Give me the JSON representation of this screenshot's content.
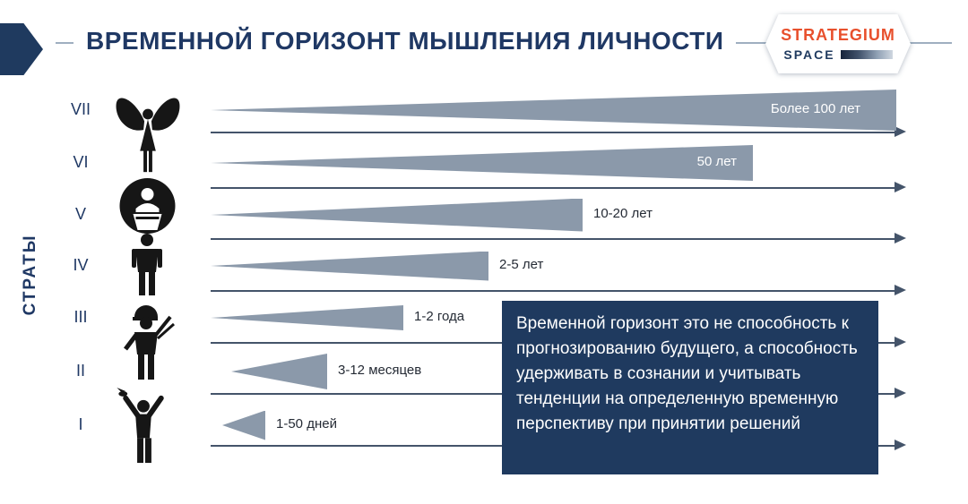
{
  "header": {
    "title": "ВРЕМЕННОЙ ГОРИЗОНТ МЫШЛЕНИЯ ЛИЧНОСТИ",
    "logo": {
      "name": "STRATEGIUM",
      "sub": "SPACE"
    }
  },
  "y_axis_label": "СТРАТЫ",
  "rows": [
    {
      "stratum": "VII",
      "label": "Более 100 лет"
    },
    {
      "stratum": "VI",
      "label": "50 лет"
    },
    {
      "stratum": "V",
      "label": "10-20 лет"
    },
    {
      "stratum": "IV",
      "label": "2-5 лет"
    },
    {
      "stratum": "III",
      "label": "1-2 года"
    },
    {
      "stratum": "II",
      "label": "3-12 месяцев"
    },
    {
      "stratum": "I",
      "label": "1-50 дней"
    }
  ],
  "chart_data": {
    "type": "bar",
    "orientation": "horizontal",
    "title": "ВРЕМЕННОЙ ГОРИЗОНТ МЫШЛЕНИЯ ЛИЧНОСТИ",
    "categories": [
      "VII",
      "VI",
      "V",
      "IV",
      "III",
      "II",
      "I"
    ],
    "value_labels": [
      "Более 100 лет",
      "50 лет",
      "10-20 лет",
      "2-5 лет",
      "1-2 года",
      "3-12 месяцев",
      "1-50 дней"
    ],
    "ylabel": "СТРАТЫ",
    "legend": false,
    "grid": false
  },
  "icons": [
    "angel-icon",
    "leader-in-circle-icon",
    "businessman-icon",
    "worker-icon",
    "winner-with-bird-icon"
  ],
  "note": "Временной горизонт это не способность к прогнозированию будущего, а способность удерживать в сознании и учитывать тенденции на определенную временную перспективу при принятии решений",
  "colors": {
    "navy": "#1f3864",
    "note_bg": "#1f3a5f",
    "wedge": "#8b99aa",
    "arrow": "#44546a",
    "logo_orange": "#e8502d"
  }
}
